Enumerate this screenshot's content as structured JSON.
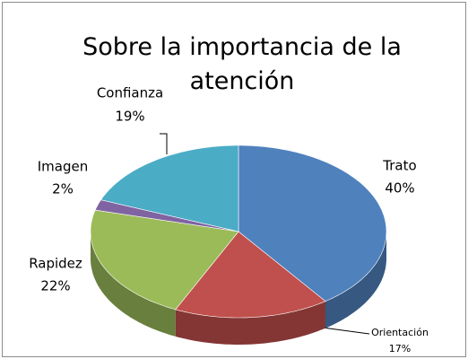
{
  "chart_data": {
    "type": "pie3d",
    "title": "Sobre la importancia de la atención",
    "categories": [
      "Trato",
      "Orientación",
      "Rapidez",
      "Imagen",
      "Confianza"
    ],
    "values": [
      40,
      17,
      22,
      2,
      19
    ],
    "value_labels": [
      "40%",
      "17%",
      "22%",
      "2%",
      "19%"
    ],
    "colors": [
      "#4f81bd",
      "#c0504d",
      "#9bbb59",
      "#8064a2",
      "#4bacc6"
    ]
  }
}
